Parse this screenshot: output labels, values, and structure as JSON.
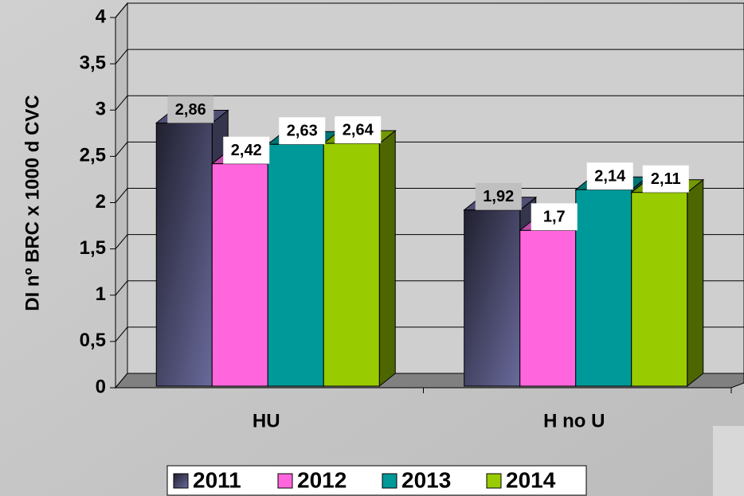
{
  "chart_data": {
    "type": "bar3d",
    "y_label": "DI nº BRC x 1000 d CVC",
    "categories": [
      "HU",
      "H no U"
    ],
    "series": [
      {
        "name": "2011",
        "color": "#6a6a9c",
        "values": [
          2.86,
          1.92
        ],
        "value_labels": [
          "2,86",
          "1,92"
        ]
      },
      {
        "name": "2012",
        "color": "#ff66dd",
        "values": [
          2.42,
          1.7
        ],
        "value_labels": [
          "2,42",
          "1,7"
        ]
      },
      {
        "name": "2013",
        "color": "#009999",
        "values": [
          2.63,
          2.14
        ],
        "value_labels": [
          "2,63",
          "2,14"
        ]
      },
      {
        "name": "2014",
        "color": "#99cc00",
        "values": [
          2.64,
          2.11
        ],
        "value_labels": [
          "2,64",
          "2,11"
        ]
      }
    ],
    "ylim": [
      0,
      4
    ],
    "yticks": [
      0,
      {
        "value": 0.5,
        "label": "0,5"
      },
      1,
      {
        "value": 1.5,
        "label": "1,5"
      },
      2,
      {
        "value": 2.5,
        "label": "2,5"
      },
      3,
      {
        "value": 3.5,
        "label": "3,5"
      },
      4
    ],
    "grid": true,
    "legend": "bottom"
  }
}
